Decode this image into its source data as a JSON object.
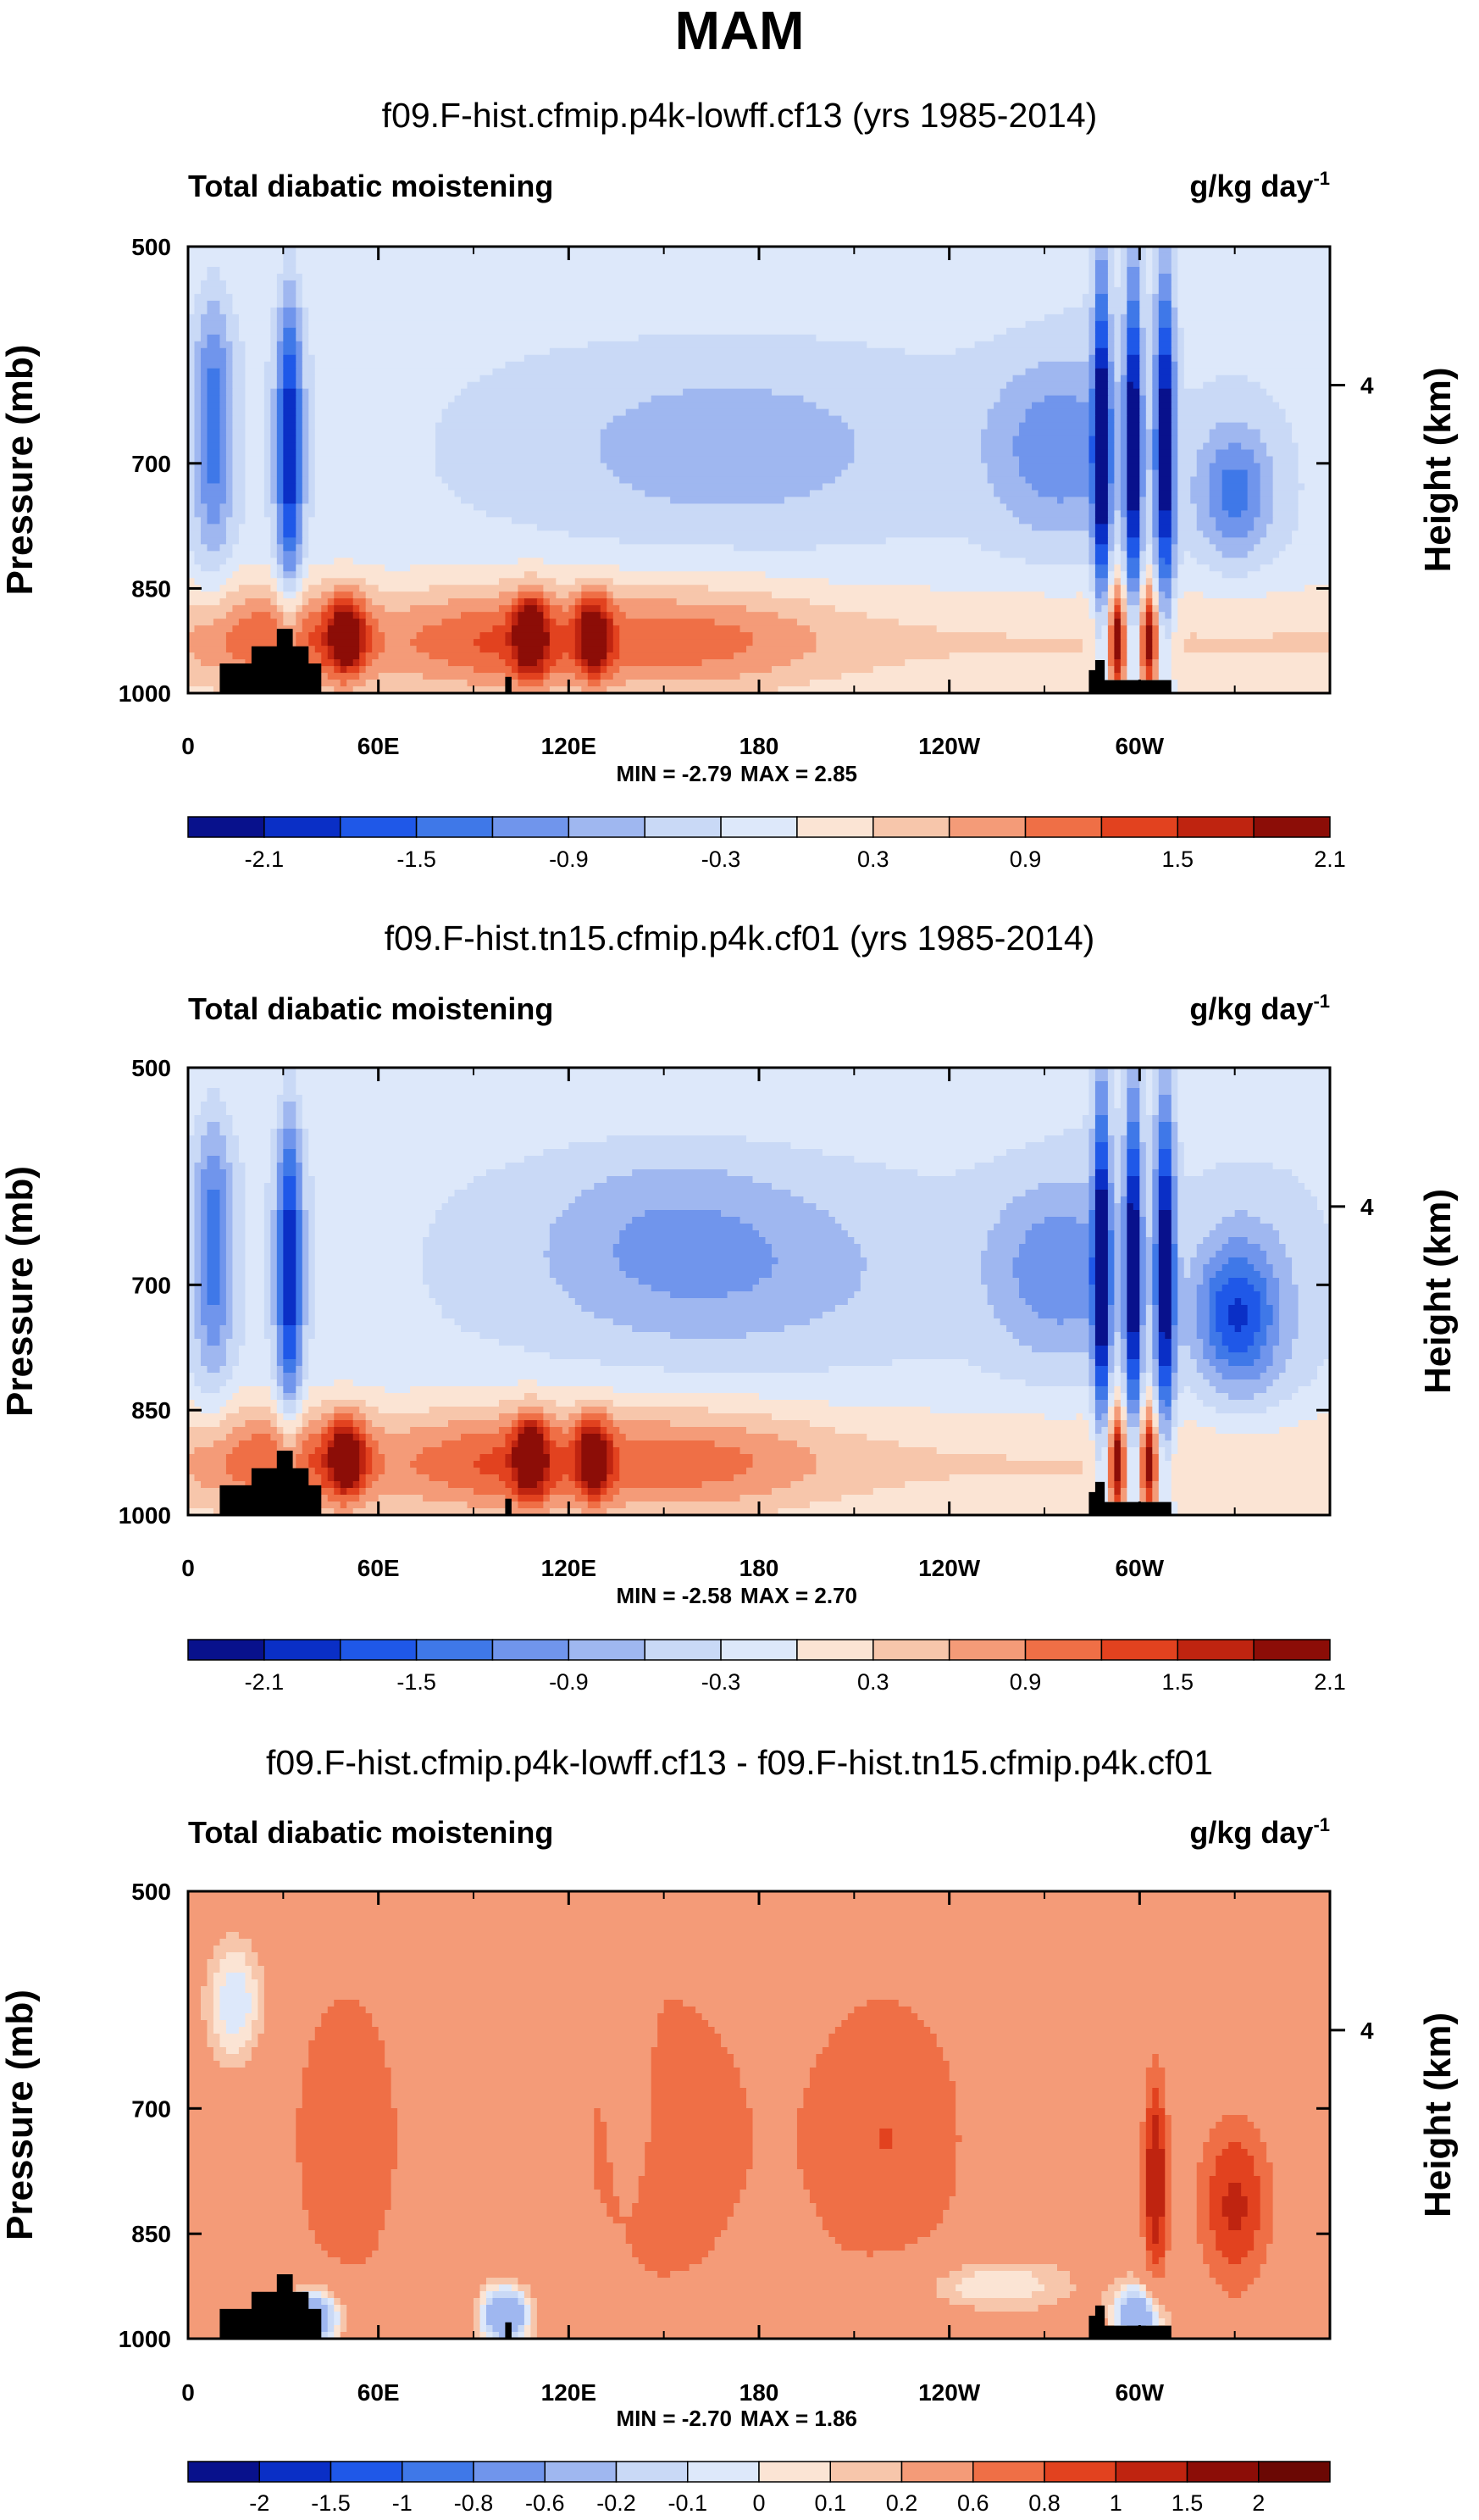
{
  "figure": {
    "season": "MAM"
  },
  "colors": {
    "palette_11": [
      "#08118c",
      "#0a2fc6",
      "#1f58e8",
      "#3f78e8",
      "#7095ec",
      "#9fb7f0",
      "#c9d9f6",
      "#dde8fa",
      "#fbe4d4",
      "#f7c6ab",
      "#f49b78",
      "#ef6f46",
      "#e2421f",
      "#bf2410",
      "#8c0d07"
    ],
    "palette_16": [
      "#08118c",
      "#0a2fc6",
      "#1f58e8",
      "#3f78e8",
      "#7095ec",
      "#9fb7f0",
      "#c9d9f6",
      "#dde8fa",
      "#fbe4d4",
      "#f7c6ab",
      "#f49b78",
      "#ef6f46",
      "#e2421f",
      "#bf2410",
      "#8c0d07",
      "#6b0804"
    ],
    "terrain": "#000000"
  },
  "chart_data": [
    {
      "type": "contour",
      "subtitle": "f09.F-hist.cfmip.p4k-lowff.cf13 (yrs 1985-2014)",
      "left_label": "Total diabatic moistening",
      "units_base": "g/kg day",
      "units_sup": "-1",
      "ylabel": "Pressure (mb)",
      "ylabel_right": "Height (km)",
      "y_ticks": [
        "500",
        "700",
        "850",
        "1000"
      ],
      "y_ticks_right": [
        "4"
      ],
      "x_ticks": [
        "0",
        "60E",
        "120E",
        "180",
        "120W",
        "60W"
      ],
      "xlim": [
        0,
        360
      ],
      "ylim": [
        1000,
        500
      ],
      "min_label": "MIN =  -2.79",
      "max_label": "MAX =   2.85",
      "colorbar_labels": [
        "-2.1",
        "-1.5",
        "-0.9",
        "-0.3",
        "0.3",
        "0.9",
        "1.5",
        "2.1"
      ],
      "colorbar_levels": [
        -2.4,
        -2.1,
        -1.8,
        -1.5,
        -1.2,
        -0.9,
        -0.6,
        -0.3,
        0,
        0.3,
        0.6,
        0.9,
        1.2,
        1.5,
        1.8,
        2.1,
        2.4
      ]
    },
    {
      "type": "contour",
      "subtitle": "f09.F-hist.tn15.cfmip.p4k.cf01 (yrs 1985-2014)",
      "left_label": "Total diabatic moistening",
      "units_base": "g/kg day",
      "units_sup": "-1",
      "ylabel": "Pressure (mb)",
      "ylabel_right": "Height (km)",
      "y_ticks": [
        "500",
        "700",
        "850",
        "1000"
      ],
      "y_ticks_right": [
        "4"
      ],
      "x_ticks": [
        "0",
        "60E",
        "120E",
        "180",
        "120W",
        "60W"
      ],
      "xlim": [
        0,
        360
      ],
      "ylim": [
        1000,
        500
      ],
      "min_label": "MIN =  -2.58",
      "max_label": "MAX =   2.70",
      "colorbar_labels": [
        "-2.1",
        "-1.5",
        "-0.9",
        "-0.3",
        "0.3",
        "0.9",
        "1.5",
        "2.1"
      ],
      "colorbar_levels": [
        -2.4,
        -2.1,
        -1.8,
        -1.5,
        -1.2,
        -0.9,
        -0.6,
        -0.3,
        0,
        0.3,
        0.6,
        0.9,
        1.2,
        1.5,
        1.8,
        2.1,
        2.4
      ]
    },
    {
      "type": "contour",
      "subtitle": "f09.F-hist.cfmip.p4k-lowff.cf13 - f09.F-hist.tn15.cfmip.p4k.cf01",
      "left_label": "Total diabatic moistening",
      "units_base": "g/kg day",
      "units_sup": "-1",
      "ylabel": "Pressure (mb)",
      "ylabel_right": "Height (km)",
      "y_ticks": [
        "500",
        "700",
        "850",
        "1000"
      ],
      "y_ticks_right": [
        "4"
      ],
      "x_ticks": [
        "0",
        "60E",
        "120E",
        "180",
        "120W",
        "60W"
      ],
      "xlim": [
        0,
        360
      ],
      "ylim": [
        1000,
        500
      ],
      "min_label": "MIN =  -2.70",
      "max_label": "MAX =   1.86",
      "colorbar_labels": [
        "-2",
        "-1.5",
        "-1",
        "-0.8",
        "-0.6",
        "-0.2",
        "-0.1",
        "0",
        "0.1",
        "0.2",
        "0.6",
        "0.8",
        "1",
        "1.5",
        "2"
      ],
      "colorbar_levels": [
        -2.5,
        -2,
        -1.5,
        -1,
        -0.8,
        -0.6,
        -0.2,
        -0.1,
        0,
        0.1,
        0.2,
        0.6,
        0.8,
        1,
        1.5,
        2,
        2.5
      ]
    }
  ]
}
